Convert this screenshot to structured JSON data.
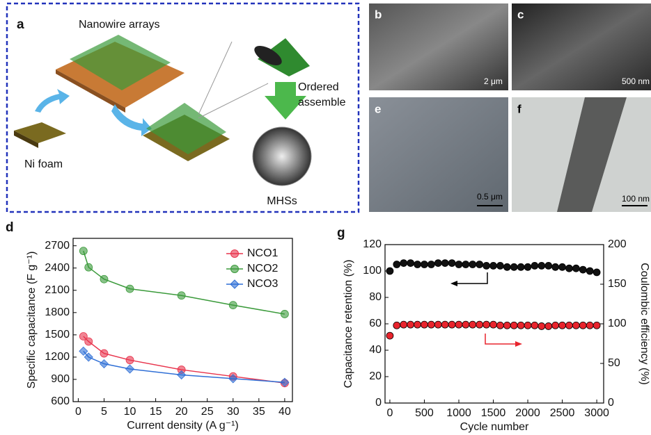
{
  "panel_a": {
    "label": "a",
    "nanowire": "Nanowire arrays",
    "ni_foam": "Ni foam",
    "ordered": [
      "Ordered",
      "assemble"
    ],
    "mhss": "MHSs"
  },
  "images": [
    {
      "label": "b",
      "scale": "2 μm"
    },
    {
      "label": "c",
      "scale": "500 nm"
    },
    {
      "label": "e",
      "scale": "0.5 μm"
    },
    {
      "label": "f",
      "scale": "100 nm"
    }
  ],
  "chart_data": [
    {
      "type": "line",
      "panel": "d",
      "x_label": "Current density (A g⁻¹)",
      "y_label": "Specific capacitance (F g⁻¹)",
      "x": [
        1,
        2,
        5,
        10,
        20,
        30,
        40
      ],
      "series": [
        {
          "name": "NCO1",
          "color": "#e8344c",
          "marker": "circle",
          "values": [
            1480,
            1410,
            1250,
            1160,
            1030,
            940,
            850
          ]
        },
        {
          "name": "NCO2",
          "color": "#3a9a3a",
          "marker": "circle",
          "values": [
            2630,
            2410,
            2250,
            2120,
            2030,
            1900,
            1780
          ]
        },
        {
          "name": "NCO3",
          "color": "#2f6fd6",
          "marker": "diamond",
          "values": [
            1280,
            1200,
            1110,
            1040,
            960,
            910,
            860
          ]
        }
      ],
      "xlim": [
        -1,
        41.5
      ],
      "xticks": [
        0,
        5,
        10,
        15,
        20,
        25,
        30,
        35,
        40
      ],
      "ylim": [
        600,
        2800
      ],
      "yticks": [
        600,
        900,
        1200,
        1500,
        1800,
        2100,
        2400,
        2700
      ],
      "legend": "upper right"
    },
    {
      "type": "scatter",
      "panel": "g",
      "x_label": "Cycle number",
      "y_label": "Capacitance retention (%)",
      "y2_label": "Coulombic efficiency (%)",
      "x": [
        0,
        100,
        200,
        300,
        400,
        500,
        600,
        700,
        800,
        900,
        1000,
        1100,
        1200,
        1300,
        1400,
        1500,
        1600,
        1700,
        1800,
        1900,
        2000,
        2100,
        2200,
        2300,
        2400,
        2500,
        2600,
        2700,
        2800,
        2900,
        3000
      ],
      "series": [
        {
          "color": "#111111",
          "values": [
            100,
            105,
            106,
            106,
            105,
            105,
            105,
            106,
            106,
            106,
            105,
            105,
            105,
            105,
            104,
            104,
            104,
            103,
            103,
            103,
            103,
            104,
            104,
            104,
            103,
            103,
            102,
            102,
            101,
            100,
            99
          ]
        },
        {
          "color": "#e8242d",
          "axis": "y2",
          "values": [
            85,
            98,
            99,
            99,
            99,
            99,
            99,
            99,
            99,
            99,
            99,
            99,
            99,
            99,
            99,
            99,
            98,
            98,
            98,
            98,
            98,
            98,
            97,
            97,
            98,
            98,
            98,
            98,
            98,
            98,
            98
          ]
        }
      ],
      "xlim": [
        -70,
        3100
      ],
      "xticks": [
        0,
        500,
        1000,
        1500,
        2000,
        2500,
        3000
      ],
      "ylim": [
        0,
        120
      ],
      "yticks": [
        0,
        20,
        40,
        60,
        80,
        100,
        120
      ],
      "y2lim": [
        0,
        200
      ],
      "y2ticks": [
        0,
        50,
        100,
        150,
        200
      ]
    }
  ]
}
